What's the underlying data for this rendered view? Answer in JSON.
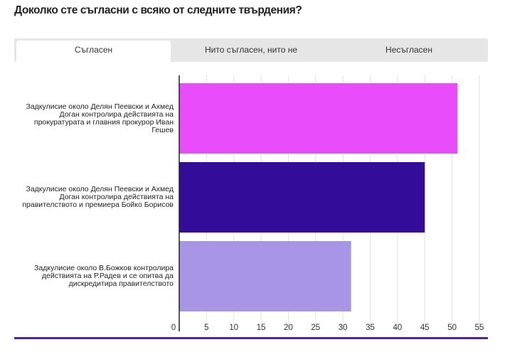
{
  "title": "Доколко сте съгласни с всяко от следните твърдения?",
  "tabs": [
    {
      "label": "Съгласен",
      "active": true
    },
    {
      "label": "Нито съгласен, нито не",
      "active": false
    },
    {
      "label": "Несъгласен",
      "active": false
    }
  ],
  "chart_data": {
    "type": "bar",
    "orientation": "horizontal",
    "categories": [
      "Задкулисие около Делян Пеевски и Ахмед Доган контролира действията на прокуратурата и главния прокурор Иван Гешев",
      "Задкулисие около Делян Пеевски и Ахмед Доган контролира действията на правителството и премиера Бойко Борисов",
      "Задкулисие около В.Божков контролира действията на Р.Радев и се опитва да дискредитира правителството"
    ],
    "values": [
      51,
      45,
      31.5
    ],
    "colors": [
      "#e94dfb",
      "#330c9a",
      "#a895e6"
    ],
    "xlim": [
      0,
      55
    ],
    "xticks": [
      0,
      5,
      10,
      15,
      20,
      25,
      30,
      35,
      40,
      45,
      50,
      55
    ],
    "grid": true
  },
  "colors": {
    "axis": "#222222",
    "grid": "#e2e2e2",
    "bottom_rule": "#4b2a8c",
    "tab_bar": "#e6e6e6"
  }
}
